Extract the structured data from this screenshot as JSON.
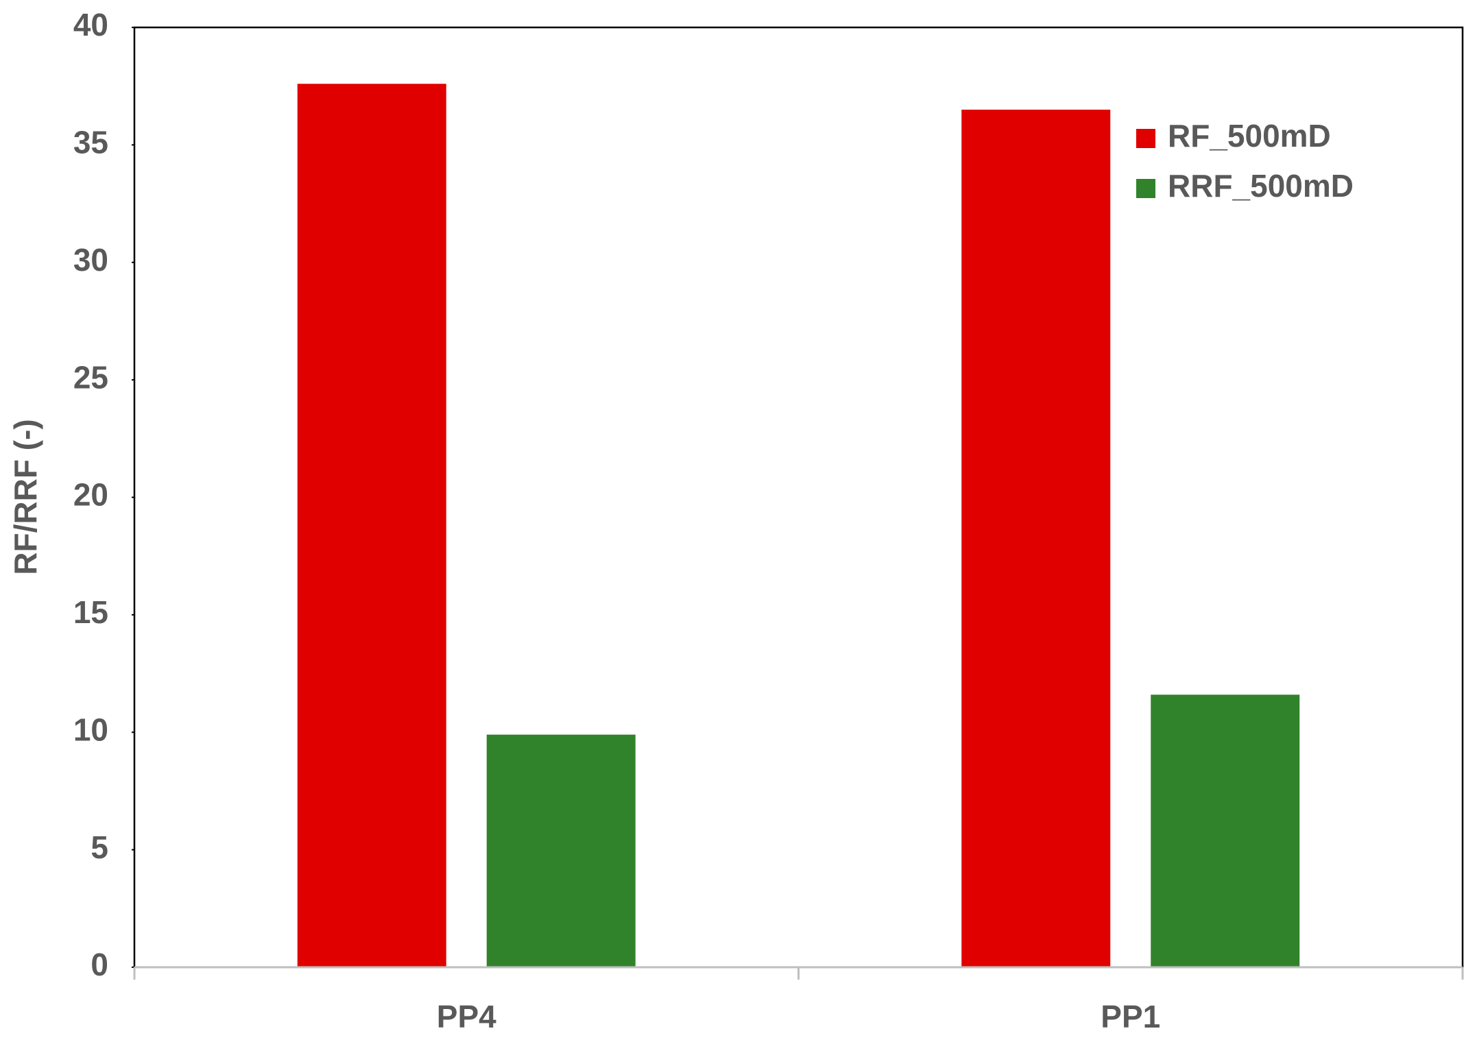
{
  "chart_data": {
    "type": "bar",
    "y_label": "RF/RRF (-)",
    "categories": [
      "PP4",
      "PP1"
    ],
    "series": [
      {
        "name": "RF_500mD",
        "color": "#e00000",
        "values": [
          37.6,
          36.5
        ]
      },
      {
        "name": "RRF_500mD",
        "color": "#31832b",
        "values": [
          9.9,
          11.6
        ]
      }
    ],
    "ylim": [
      0,
      40
    ],
    "yticks": [
      0,
      5,
      10,
      15,
      20,
      25,
      30,
      35,
      40
    ],
    "grid": false,
    "legend": "upper right"
  }
}
